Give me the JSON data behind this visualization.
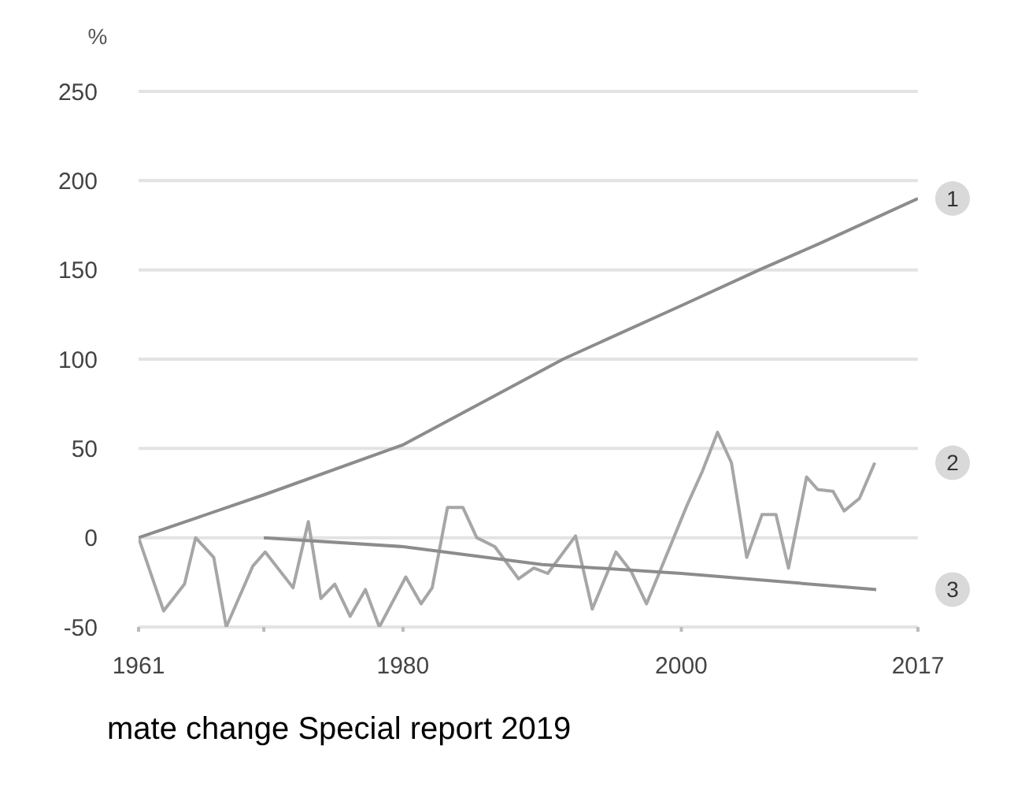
{
  "chart_data": {
    "type": "line",
    "ylabel": "%",
    "xlim": [
      1961,
      2017
    ],
    "xticks": [
      1961,
      {
        "value": 1970,
        "label": null
      },
      1980,
      2000,
      2017
    ],
    "ylim": [
      -50,
      250
    ],
    "yticks": [
      -50,
      0,
      50,
      100,
      150,
      200,
      250
    ],
    "grid": "y",
    "series": [
      {
        "name": "1",
        "color": "#8c8c8c",
        "x": [
          1961,
          1970,
          1980,
          1991.5,
          2000,
          2005.6,
          2010,
          2017
        ],
        "values": [
          0,
          24,
          52,
          100,
          130,
          150,
          165,
          190
        ]
      },
      {
        "name": "2",
        "color": "#a6a6a6",
        "x": [
          1961,
          1962.8,
          1964.3,
          1965.1,
          1966.4,
          1967.3,
          1969.2,
          1970.1,
          1972.1,
          1973.2,
          1974.1,
          1975.1,
          1976.2,
          1977.3,
          1978.3,
          1980.2,
          1981.3,
          1982.1,
          1983.2,
          1984.3,
          1985.3,
          1986.6,
          1988.3,
          1989.4,
          1990.4,
          1992.4,
          1993.6,
          1995.3,
          1996.4,
          1997.5,
          2000.4,
          2001.5,
          2002.6,
          2003.6,
          2004.7,
          2005.8,
          2006.8,
          2007.7,
          2009.0,
          2009.8,
          2010.9,
          2011.7,
          2012.8,
          2013.9
        ],
        "values": [
          0,
          -41,
          -26,
          0,
          -11,
          -50,
          -16,
          -8,
          -28,
          9,
          -34,
          -26,
          -44,
          -29,
          -50,
          -22,
          -37,
          -28,
          17,
          17,
          0,
          -5,
          -23,
          -17,
          -20,
          1,
          -40,
          -8,
          -19,
          -37,
          18,
          37,
          59,
          42,
          -11,
          13,
          13,
          -17,
          34,
          27,
          26,
          15,
          22,
          42
        ]
      },
      {
        "name": "3",
        "color": "#8c8c8c",
        "x": [
          1970,
          1980,
          1990,
          2000,
          2014
        ],
        "values": [
          0,
          -5,
          -15,
          -20,
          -29
        ]
      }
    ],
    "annotations": [
      "mate change Special report 2019"
    ]
  }
}
